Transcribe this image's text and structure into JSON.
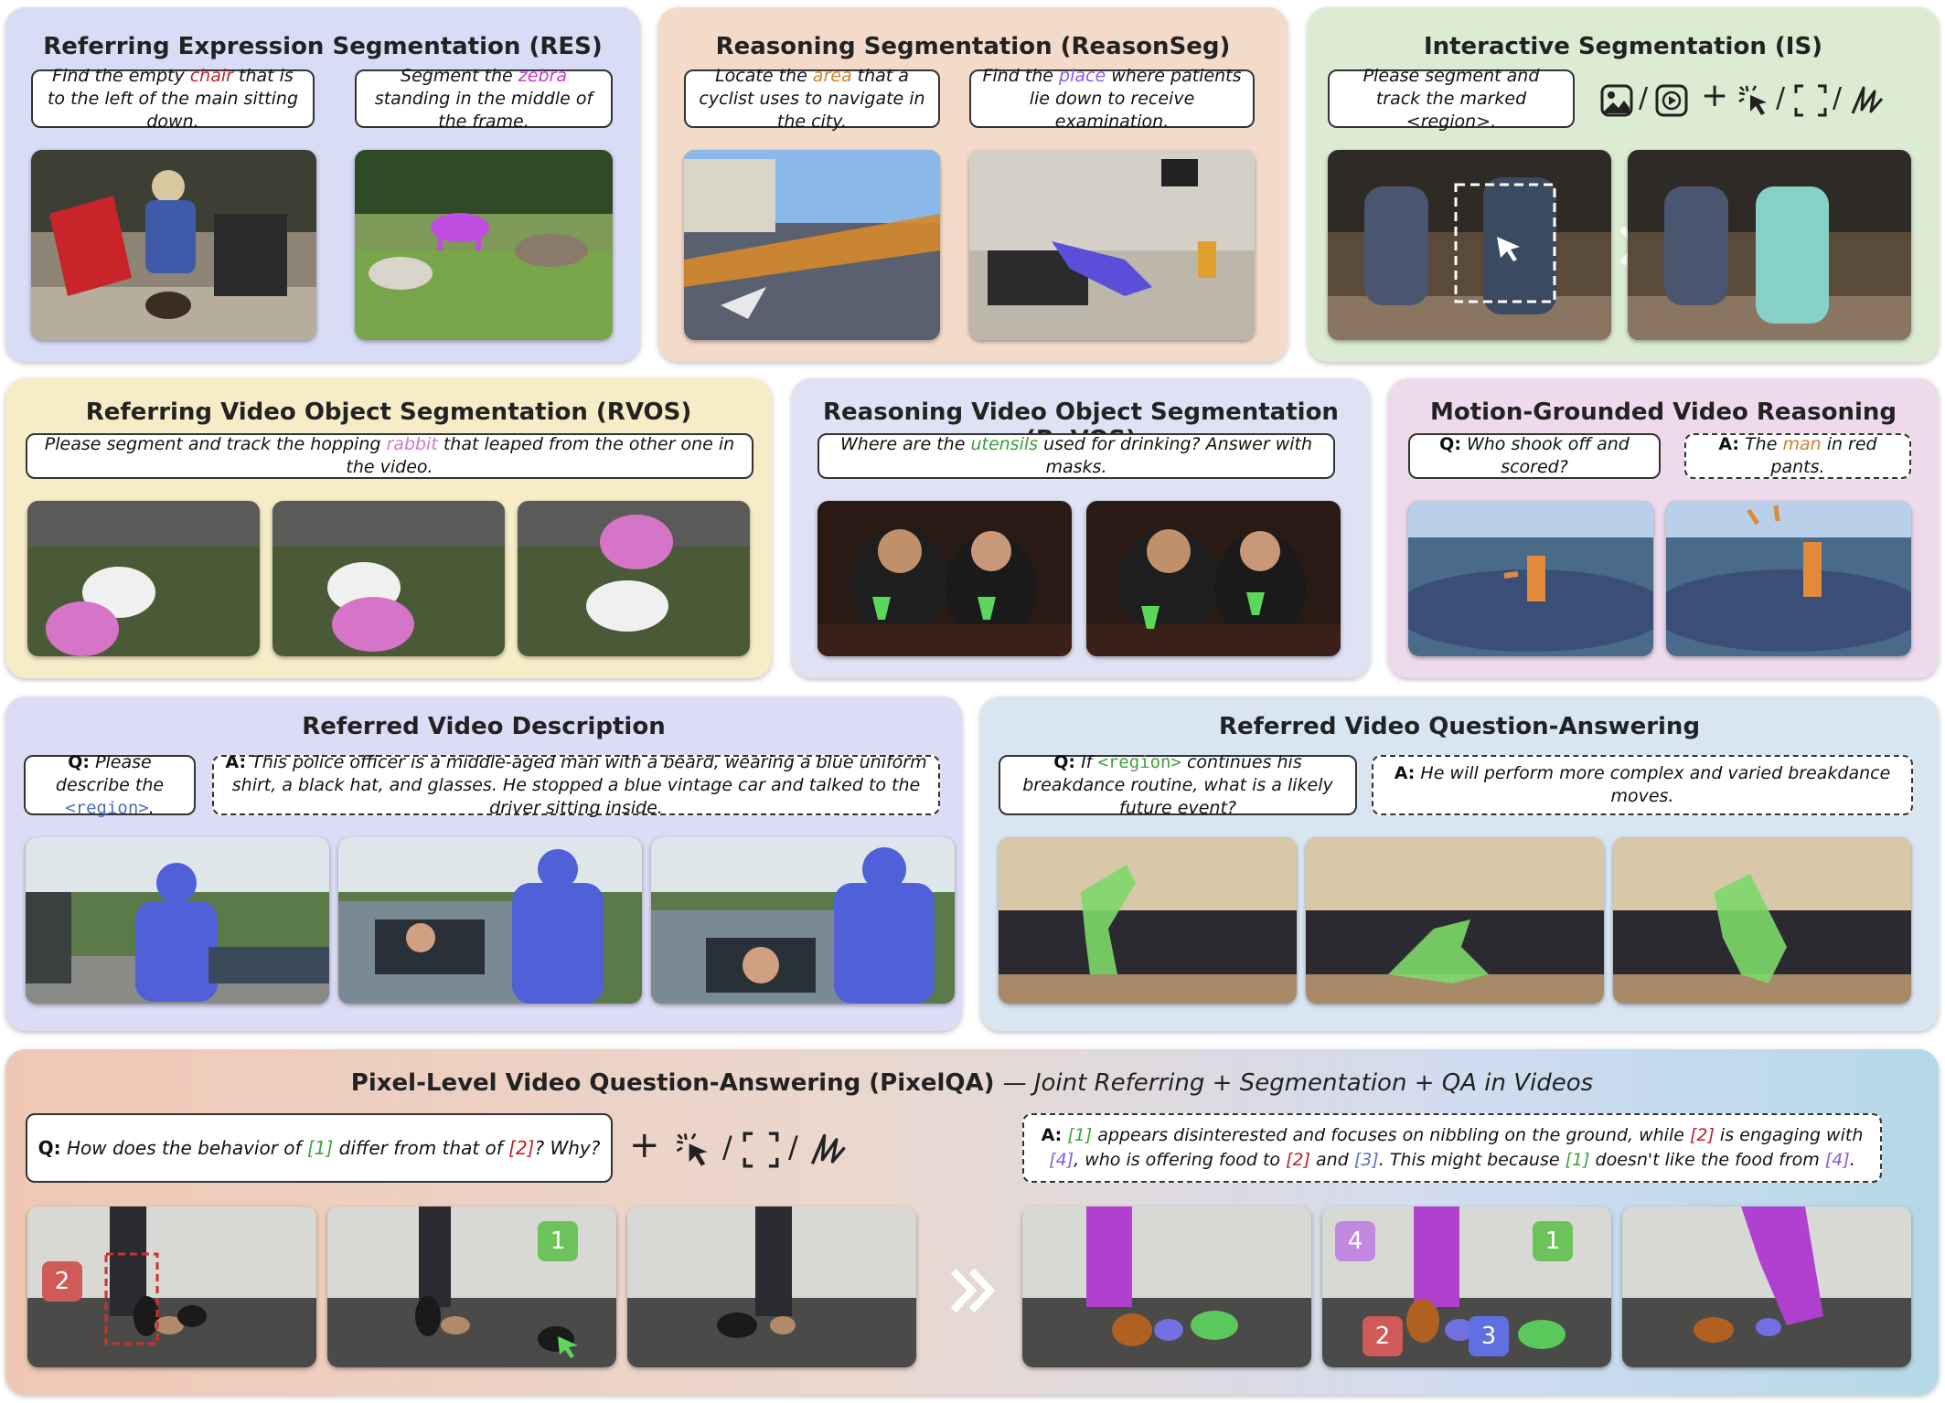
{
  "res": {
    "title": "Referring Expression Segmentation (RES)",
    "q1": [
      "Find the empty ",
      "chair",
      " that is to the left of the main sitting down."
    ],
    "q2": [
      "Segment the ",
      "zebra",
      " standing in the middle of the frame."
    ]
  },
  "reason": {
    "title": "Reasoning Segmentation (ReasonSeg)",
    "q1": [
      "Locate the ",
      "area",
      " that a cyclist uses to navigate in the city."
    ],
    "q2": [
      "Find the ",
      "place",
      " where patients lie down to receive examination."
    ]
  },
  "is": {
    "title": "Interactive Segmentation (IS)",
    "q": "Please segment and track the marked <region>.",
    "sep": "/",
    "plus": "+"
  },
  "rvos": {
    "title": "Referring Video Object Segmentation (RVOS)",
    "q": [
      "Please segment and track the hopping ",
      "rabbit",
      " that leaped from the other one in the video."
    ]
  },
  "revos": {
    "title": "Reasoning Video Object Segmentation (ReVOS)",
    "q": [
      "Where are the ",
      "utensils",
      " used for drinking? Answer with masks."
    ]
  },
  "motion": {
    "title": "Motion-Grounded Video Reasoning",
    "q_label": "Q:",
    "q": "Who shook off and scored?",
    "a_label": "A:",
    "a": [
      "The ",
      "man",
      " in red pants."
    ]
  },
  "rvd": {
    "title": "Referred Video Description",
    "q_label": "Q:",
    "q": [
      "Please describe the ",
      "<region>",
      "."
    ],
    "a_label": "A:",
    "a": "This police officer is a middle-aged man with a beard, wearing a blue uniform shirt, a black hat, and glasses. He stopped a blue vintage car and talked to the driver sitting inside."
  },
  "rvqa": {
    "title": "Referred Video Question-Answering",
    "q_label": "Q:",
    "q": [
      "If ",
      "<region>",
      " continues his breakdance routine, what is a likely future event?"
    ],
    "a_label": "A:",
    "a": "He will perform more complex and varied breakdance moves."
  },
  "pixelqa": {
    "title": "Pixel-Level Video Question-Answering (PixelQA)",
    "subtitle": "— Joint Referring + Segmentation + QA in Videos",
    "q_label": "Q:",
    "q": [
      "How does the behavior of ",
      "[1]",
      " differ from that of ",
      "[2]",
      "? Why?"
    ],
    "a_label": "A:",
    "a": [
      "[1]",
      " appears disinterested and focuses on nibbling on the ground, while ",
      "[2]",
      " is engaging with ",
      "[4]",
      ", who is offering food to ",
      "[2]",
      " and ",
      "[3]",
      ". This might because ",
      "[1]",
      " doesn't like the food from ",
      "[4]",
      "."
    ],
    "tags": {
      "t1": "1",
      "t2": "2",
      "t3": "3",
      "t4": "4"
    },
    "arrow": "»"
  },
  "colors": {
    "res": "#d9dcf7",
    "reason": "#f4dac9",
    "is": "#dbecd2",
    "rvos": "#f6ecc7",
    "revos": "#dfe2f4",
    "motion": "#eedaec",
    "rvd": "#dcdcf6",
    "rvqa": "#d9e6f2",
    "mask_pink": "#d675c8",
    "mask_green": "#5bd75b"
  }
}
